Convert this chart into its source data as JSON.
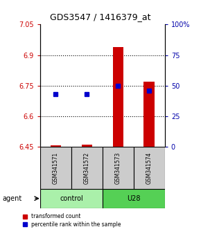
{
  "title": "GDS3547 / 1416379_at",
  "samples": [
    "GSM341571",
    "GSM341572",
    "GSM341573",
    "GSM341574"
  ],
  "transformed_counts": [
    6.457,
    6.463,
    6.94,
    6.77
  ],
  "bar_bottom": 6.45,
  "percentile_ranks": [
    43,
    43,
    50,
    46
  ],
  "ylim_left": [
    6.45,
    7.05
  ],
  "ylim_right": [
    0,
    100
  ],
  "yticks_left": [
    6.45,
    6.6,
    6.75,
    6.9,
    7.05
  ],
  "yticks_right": [
    0,
    25,
    50,
    75,
    100
  ],
  "ytick_labels_right": [
    "0",
    "25",
    "50",
    "75",
    "100%"
  ],
  "hlines": [
    6.6,
    6.75,
    6.9
  ],
  "groups": [
    {
      "label": "control",
      "samples": [
        0,
        1
      ],
      "color": "#aaf0aa"
    },
    {
      "label": "U28",
      "samples": [
        2,
        3
      ],
      "color": "#55d055"
    }
  ],
  "bar_color": "#cc0000",
  "point_color": "#0000cc",
  "left_tick_color": "#cc0000",
  "right_tick_color": "#0000aa",
  "agent_label": "agent",
  "background_color": "#ffffff",
  "label_area_color": "#cccccc",
  "figsize": [
    2.9,
    3.54
  ],
  "dpi": 100
}
